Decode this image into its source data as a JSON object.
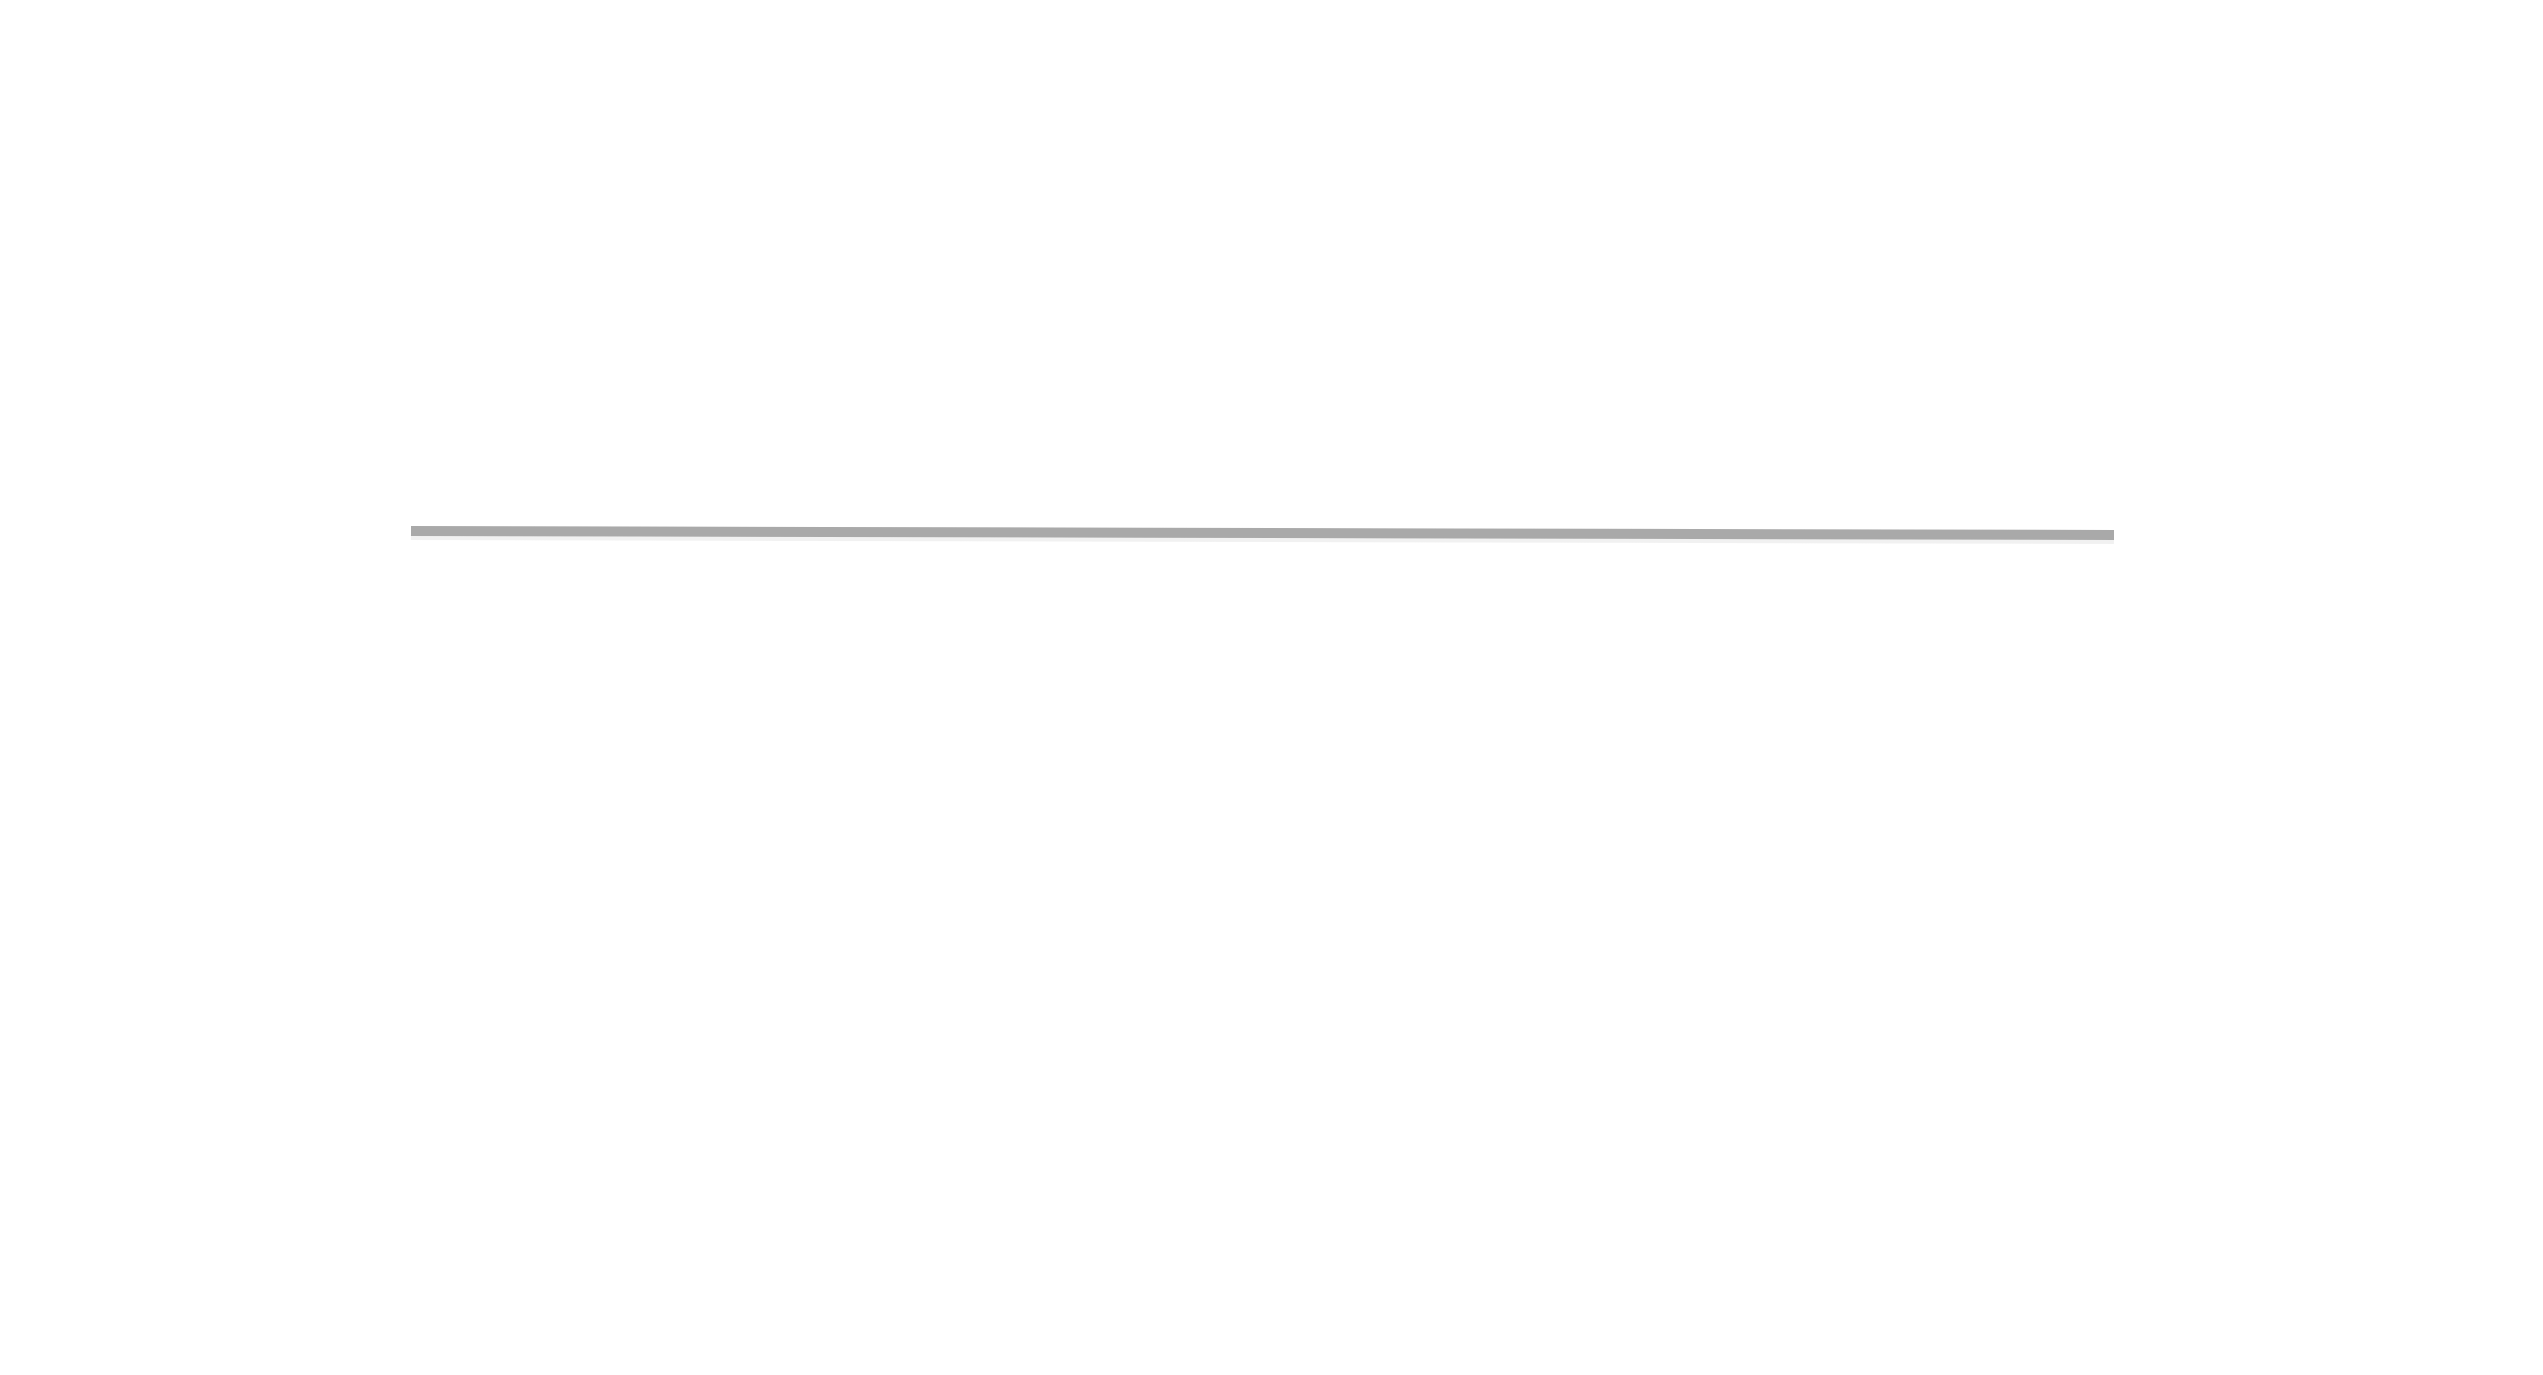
{
  "page": {
    "background_color": "#ffffff"
  },
  "divider": {
    "color": "#a9a9a9",
    "shadow_color": "#d9d9d9"
  }
}
